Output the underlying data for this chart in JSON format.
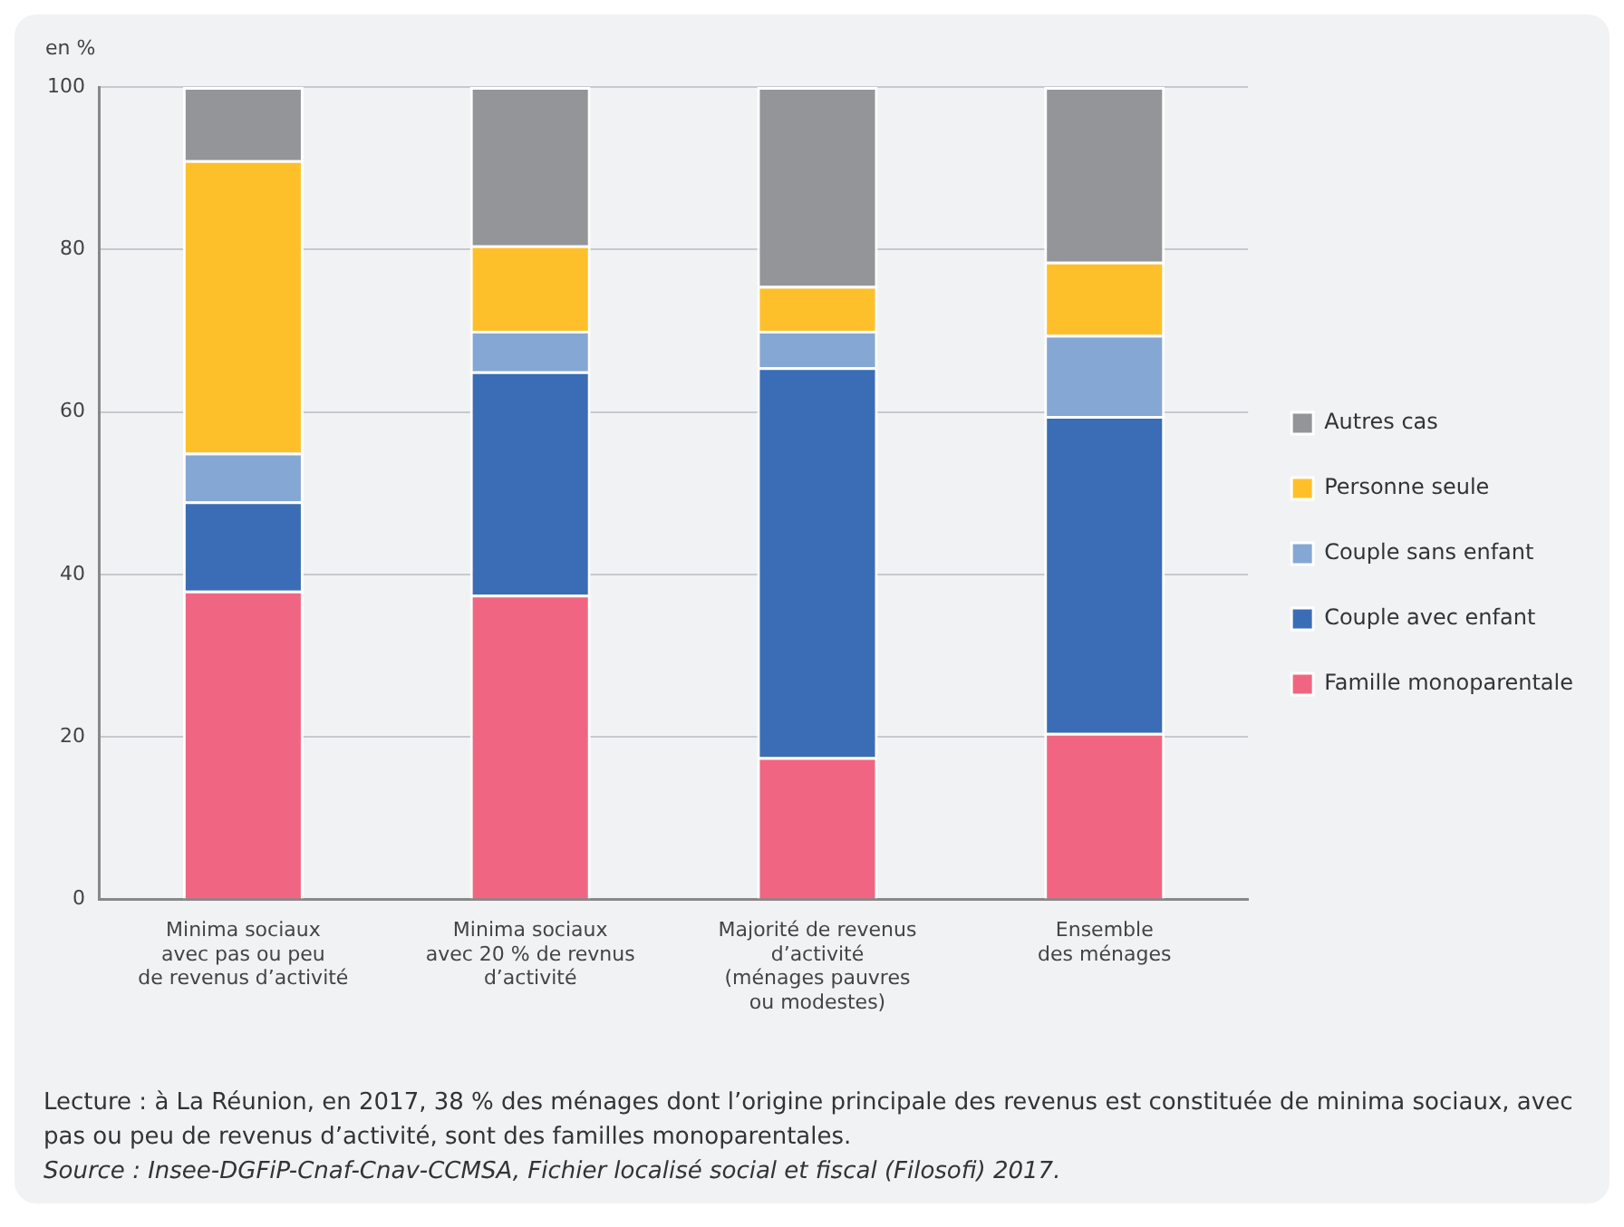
{
  "chart_data": {
    "type": "bar",
    "stacked": true,
    "ylabel": "en %",
    "categories": [
      "Minima sociaux\navec pas ou peu\nde revenus d’activité",
      "Minima sociaux\navec 20 % de revnus\nd’activité",
      "Majorité de revenus\nd’activité\n(ménages pauvres\nou modestes)",
      "Ensemble\ndes ménages"
    ],
    "series": [
      {
        "name": "Famille monoparentale",
        "color": "#f06682",
        "values": [
          38,
          37.5,
          17.5,
          20.5
        ]
      },
      {
        "name": "Couple avec enfant",
        "color": "#3a6db5",
        "values": [
          11,
          27.5,
          48,
          39
        ]
      },
      {
        "name": "Couple sans enfant",
        "color": "#85a7d3",
        "values": [
          6,
          5,
          4.5,
          10
        ]
      },
      {
        "name": "Personne seule",
        "color": "#fec02a",
        "values": [
          36,
          10.5,
          5.5,
          9
        ]
      },
      {
        "name": "Autres cas",
        "color": "#939598",
        "values": [
          9,
          19.5,
          24.5,
          21.5
        ]
      }
    ],
    "ylim": [
      0,
      100
    ],
    "yticks": [
      0,
      20,
      40,
      60,
      80,
      100
    ],
    "grid": "y",
    "legend": "right",
    "annotations": [
      "Lecture : à La Réunion, en 2017, 38 % des ménages dont l’origine principale des revenus est constituée de minima sociaux, avec pas ou peu de revenus d’activité, sont des familles monoparentales.",
      "Source : Insee-DGFiP-Cnaf-Cnav-CCMSA, Fichier localisé social et fiscal (Filosofi) 2017."
    ]
  }
}
